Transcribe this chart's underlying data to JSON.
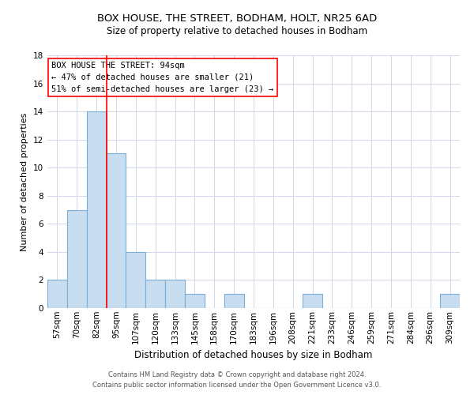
{
  "title": "BOX HOUSE, THE STREET, BODHAM, HOLT, NR25 6AD",
  "subtitle": "Size of property relative to detached houses in Bodham",
  "xlabel": "Distribution of detached houses by size in Bodham",
  "ylabel": "Number of detached properties",
  "categories": [
    "57sqm",
    "70sqm",
    "82sqm",
    "95sqm",
    "107sqm",
    "120sqm",
    "133sqm",
    "145sqm",
    "158sqm",
    "170sqm",
    "183sqm",
    "196sqm",
    "208sqm",
    "221sqm",
    "233sqm",
    "246sqm",
    "259sqm",
    "271sqm",
    "284sqm",
    "296sqm",
    "309sqm"
  ],
  "values": [
    2,
    7,
    14,
    11,
    4,
    2,
    2,
    1,
    0,
    1,
    0,
    0,
    0,
    1,
    0,
    0,
    0,
    0,
    0,
    0,
    1
  ],
  "bar_color": "#c9ddf0",
  "bar_edge_color": "#7aaed4",
  "ylim": [
    0,
    18
  ],
  "yticks": [
    0,
    2,
    4,
    6,
    8,
    10,
    12,
    14,
    16,
    18
  ],
  "red_line_x": 2.5,
  "annotation_text": "BOX HOUSE THE STREET: 94sqm\n← 47% of detached houses are smaller (21)\n51% of semi-detached houses are larger (23) →",
  "footer_line1": "Contains HM Land Registry data © Crown copyright and database right 2024.",
  "footer_line2": "Contains public sector information licensed under the Open Government Licence v3.0.",
  "background_color": "#ffffff",
  "grid_color": "#d0d8e8",
  "title_fontsize": 9.5,
  "subtitle_fontsize": 8.5,
  "xlabel_fontsize": 8.5,
  "ylabel_fontsize": 8.0,
  "tick_fontsize": 7.5,
  "annotation_fontsize": 7.5,
  "footer_fontsize": 6.0
}
